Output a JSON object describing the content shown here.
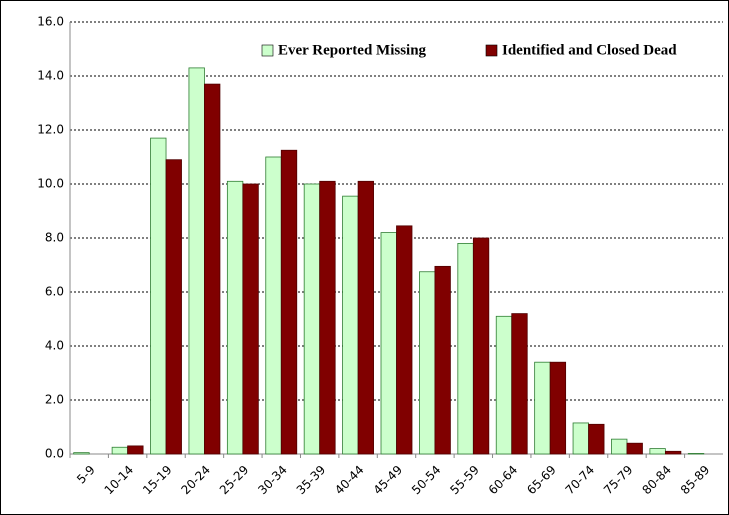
{
  "chart_data": {
    "type": "bar",
    "categories": [
      "5-9",
      "10-14",
      "15-19",
      "20-24",
      "25-29",
      "30-34",
      "35-39",
      "40-44",
      "45-49",
      "50-54",
      "55-59",
      "60-64",
      "65-69",
      "70-74",
      "75-79",
      "80-84",
      "85-89"
    ],
    "series": [
      {
        "name": "Ever Reported Missing",
        "color": "#ccffcc",
        "values": [
          0.05,
          0.25,
          11.7,
          14.3,
          10.1,
          11.0,
          10.0,
          9.55,
          8.2,
          6.75,
          7.8,
          5.1,
          3.4,
          1.15,
          0.55,
          0.2,
          0.02
        ]
      },
      {
        "name": "Identified and Closed Dead",
        "color": "#800000",
        "values": [
          0,
          0.3,
          10.9,
          13.7,
          10.0,
          11.25,
          10.1,
          10.1,
          8.45,
          6.95,
          8.0,
          5.2,
          3.4,
          1.1,
          0.4,
          0.1,
          0
        ]
      }
    ],
    "ylim": [
      0,
      16
    ],
    "yticks": [
      {
        "value": 0,
        "label": "0.0"
      },
      {
        "value": 2,
        "label": "2.0"
      },
      {
        "value": 4,
        "label": "4.0"
      },
      {
        "value": 6,
        "label": "6.0"
      },
      {
        "value": 8,
        "label": "8.0"
      },
      {
        "value": 10,
        "label": "10.0"
      },
      {
        "value": 12,
        "label": "12.0"
      },
      {
        "value": 14,
        "label": "14.0"
      },
      {
        "value": 16,
        "label": "16.0"
      }
    ],
    "grid": true,
    "legend": "top"
  }
}
